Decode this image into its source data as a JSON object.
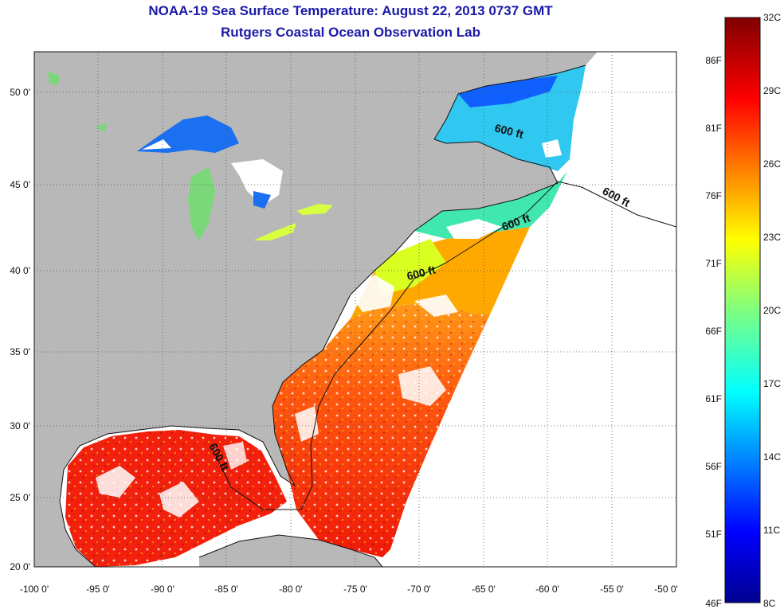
{
  "title": "NOAA-19 Sea Surface Temperature:  August 22, 2013 0737 GMT",
  "subtitle": "Rutgers Coastal Ocean Observation Lab",
  "colors": {
    "land": "#b8b8b8",
    "no_data": "#ffffff",
    "title": "#1a1aa8"
  },
  "map": {
    "lon_labels": [
      "-100 0'",
      "-95 0'",
      "-90 0'",
      "-85 0'",
      "-80 0'",
      "-75 0'",
      "-70 0'",
      "-65 0'",
      "-60 0'",
      "-55 0'",
      "-50 0'"
    ],
    "lat_labels": [
      "20 0'",
      "25 0'",
      "30 0'",
      "35 0'",
      "40 0'",
      "45 0'",
      "50 0'"
    ],
    "contour_labels": [
      "600 ft",
      "600 ft",
      "600 ft",
      "600 ft",
      "600 ft"
    ]
  },
  "colorbar": {
    "celsius_labels": [
      "32C",
      "29C",
      "26C",
      "23C",
      "20C",
      "17C",
      "14C",
      "11C",
      "8C"
    ],
    "fahrenheit_labels": [
      "86F",
      "81F",
      "76F",
      "71F",
      "66F",
      "61F",
      "56F",
      "51F",
      "46F"
    ]
  }
}
